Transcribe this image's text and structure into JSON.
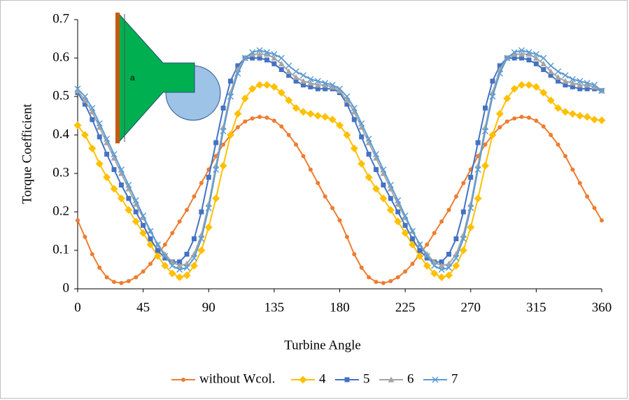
{
  "chart_data": {
    "type": "line",
    "xlabel": "Turbine Angle",
    "ylabel": "Torque Coefficient",
    "inset_label": "a",
    "xlim": [
      0,
      360
    ],
    "xticks": [
      0,
      45,
      90,
      135,
      180,
      225,
      270,
      315,
      360
    ],
    "ylim": [
      0,
      0.7
    ],
    "yticks": [
      0,
      0.1,
      0.2,
      0.3,
      0.4,
      0.5,
      0.6,
      0.7
    ],
    "grid": false,
    "legend": "bottom",
    "x": [
      0,
      5,
      10,
      15,
      20,
      25,
      30,
      35,
      40,
      45,
      50,
      55,
      60,
      65,
      70,
      75,
      80,
      85,
      90,
      95,
      100,
      105,
      110,
      115,
      120,
      125,
      130,
      135,
      140,
      145,
      150,
      155,
      160,
      165,
      170,
      175,
      180,
      185,
      190,
      195,
      200,
      205,
      210,
      215,
      220,
      225,
      230,
      235,
      240,
      245,
      250,
      255,
      260,
      265,
      270,
      275,
      280,
      285,
      290,
      295,
      300,
      305,
      310,
      315,
      320,
      325,
      330,
      335,
      340,
      345,
      350,
      355,
      360
    ],
    "series": [
      {
        "name": "without Wcol.",
        "color": "#ed7d31",
        "marker": "circle",
        "values": [
          0.178,
          0.135,
          0.09,
          0.055,
          0.03,
          0.018,
          0.015,
          0.02,
          0.03,
          0.045,
          0.065,
          0.09,
          0.115,
          0.145,
          0.175,
          0.205,
          0.24,
          0.275,
          0.31,
          0.345,
          0.375,
          0.4,
          0.42,
          0.435,
          0.443,
          0.447,
          0.445,
          0.437,
          0.422,
          0.4,
          0.375,
          0.345,
          0.31,
          0.275,
          0.24,
          0.21,
          0.178,
          0.135,
          0.09,
          0.055,
          0.03,
          0.018,
          0.015,
          0.02,
          0.03,
          0.045,
          0.065,
          0.09,
          0.115,
          0.145,
          0.175,
          0.205,
          0.24,
          0.275,
          0.31,
          0.345,
          0.375,
          0.4,
          0.42,
          0.435,
          0.443,
          0.447,
          0.445,
          0.437,
          0.422,
          0.4,
          0.375,
          0.345,
          0.31,
          0.275,
          0.24,
          0.21,
          0.178
        ]
      },
      {
        "name": "4",
        "color": "#ffc000",
        "marker": "diamond",
        "values": [
          0.425,
          0.4,
          0.365,
          0.325,
          0.29,
          0.26,
          0.235,
          0.205,
          0.175,
          0.145,
          0.115,
          0.085,
          0.06,
          0.04,
          0.03,
          0.035,
          0.06,
          0.1,
          0.16,
          0.235,
          0.32,
          0.4,
          0.455,
          0.495,
          0.52,
          0.53,
          0.53,
          0.525,
          0.51,
          0.49,
          0.47,
          0.46,
          0.455,
          0.45,
          0.447,
          0.44,
          0.425,
          0.4,
          0.365,
          0.325,
          0.29,
          0.26,
          0.235,
          0.205,
          0.175,
          0.145,
          0.115,
          0.085,
          0.06,
          0.04,
          0.03,
          0.035,
          0.06,
          0.1,
          0.16,
          0.235,
          0.32,
          0.4,
          0.455,
          0.495,
          0.52,
          0.53,
          0.53,
          0.525,
          0.51,
          0.49,
          0.47,
          0.46,
          0.455,
          0.45,
          0.447,
          0.44,
          0.438
        ]
      },
      {
        "name": "5",
        "color": "#4472c4",
        "marker": "square",
        "values": [
          0.51,
          0.48,
          0.44,
          0.395,
          0.35,
          0.31,
          0.27,
          0.235,
          0.2,
          0.165,
          0.13,
          0.1,
          0.08,
          0.07,
          0.07,
          0.09,
          0.13,
          0.2,
          0.29,
          0.38,
          0.47,
          0.54,
          0.58,
          0.6,
          0.6,
          0.6,
          0.595,
          0.585,
          0.57,
          0.555,
          0.54,
          0.53,
          0.525,
          0.52,
          0.52,
          0.52,
          0.51,
          0.48,
          0.44,
          0.395,
          0.35,
          0.31,
          0.27,
          0.235,
          0.2,
          0.165,
          0.13,
          0.1,
          0.08,
          0.07,
          0.07,
          0.09,
          0.13,
          0.2,
          0.29,
          0.38,
          0.47,
          0.54,
          0.58,
          0.6,
          0.6,
          0.6,
          0.595,
          0.585,
          0.57,
          0.555,
          0.54,
          0.53,
          0.525,
          0.52,
          0.52,
          0.52,
          0.515
        ]
      },
      {
        "name": "6",
        "color": "#a5a5a5",
        "marker": "triangle",
        "values": [
          0.515,
          0.49,
          0.46,
          0.42,
          0.38,
          0.34,
          0.3,
          0.26,
          0.22,
          0.185,
          0.15,
          0.115,
          0.09,
          0.07,
          0.06,
          0.065,
          0.09,
          0.14,
          0.22,
          0.32,
          0.42,
          0.51,
          0.57,
          0.6,
          0.61,
          0.61,
          0.61,
          0.6,
          0.585,
          0.565,
          0.55,
          0.54,
          0.535,
          0.53,
          0.53,
          0.525,
          0.515,
          0.49,
          0.46,
          0.42,
          0.38,
          0.34,
          0.3,
          0.26,
          0.22,
          0.185,
          0.15,
          0.115,
          0.09,
          0.07,
          0.06,
          0.065,
          0.09,
          0.14,
          0.22,
          0.32,
          0.42,
          0.51,
          0.57,
          0.6,
          0.61,
          0.61,
          0.61,
          0.6,
          0.585,
          0.565,
          0.55,
          0.54,
          0.535,
          0.53,
          0.53,
          0.525,
          0.515
        ]
      },
      {
        "name": "7",
        "color": "#5b9bd5",
        "marker": "x",
        "values": [
          0.52,
          0.5,
          0.47,
          0.43,
          0.39,
          0.35,
          0.31,
          0.27,
          0.23,
          0.19,
          0.15,
          0.115,
          0.085,
          0.06,
          0.05,
          0.055,
          0.08,
          0.13,
          0.21,
          0.31,
          0.41,
          0.5,
          0.56,
          0.6,
          0.615,
          0.62,
          0.615,
          0.61,
          0.6,
          0.58,
          0.565,
          0.555,
          0.545,
          0.54,
          0.535,
          0.53,
          0.52,
          0.5,
          0.47,
          0.43,
          0.39,
          0.35,
          0.31,
          0.27,
          0.23,
          0.19,
          0.15,
          0.115,
          0.085,
          0.06,
          0.05,
          0.055,
          0.08,
          0.13,
          0.21,
          0.31,
          0.41,
          0.5,
          0.56,
          0.6,
          0.615,
          0.62,
          0.615,
          0.61,
          0.6,
          0.58,
          0.565,
          0.555,
          0.545,
          0.54,
          0.535,
          0.53,
          0.515
        ]
      }
    ]
  }
}
